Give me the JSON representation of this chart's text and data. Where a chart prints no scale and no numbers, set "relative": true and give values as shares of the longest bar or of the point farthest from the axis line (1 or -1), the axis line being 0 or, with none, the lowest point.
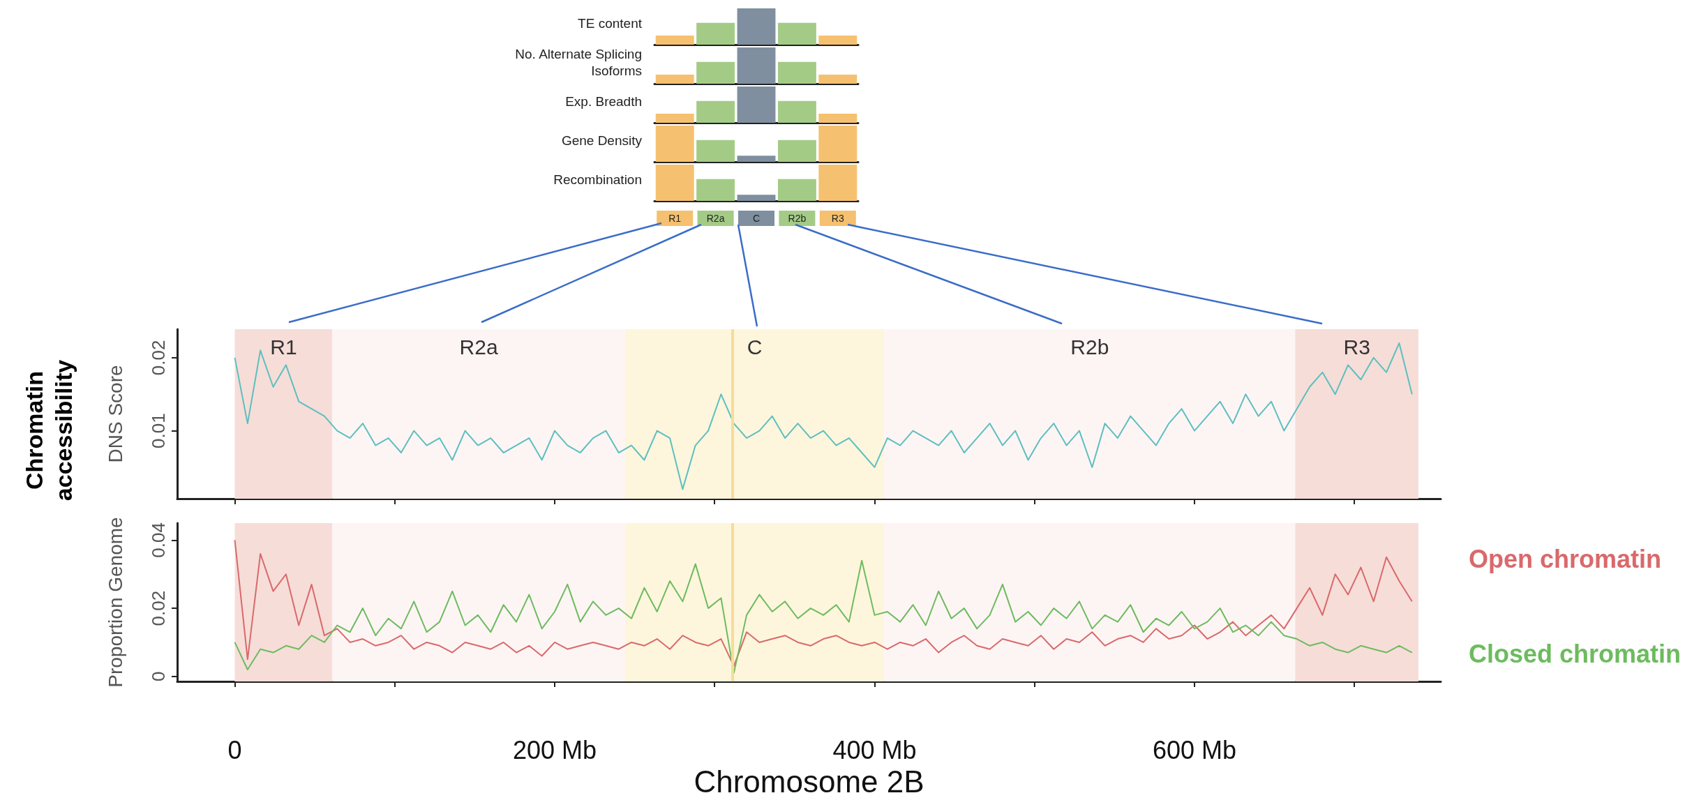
{
  "chart_data": [
    {
      "type": "bar",
      "relative": true,
      "ylabel": "TE content",
      "categories": [
        null,
        null,
        null,
        null,
        null
      ],
      "values": [
        0.25,
        0.6,
        1,
        0.6,
        0.25
      ],
      "colors": [
        "#f5c06f",
        "#a3cb86",
        "#7f8fa0",
        "#a3cb86",
        "#f5c06f"
      ],
      "tick_labels": false
    },
    {
      "type": "bar",
      "relative": true,
      "ylabel": "No. Alternate Splicing Isoforms",
      "categories": [
        null,
        null,
        null,
        null,
        null
      ],
      "values": [
        0.25,
        0.6,
        1,
        0.6,
        0.25
      ],
      "colors": [
        "#f5c06f",
        "#a3cb86",
        "#7f8fa0",
        "#a3cb86",
        "#f5c06f"
      ],
      "tick_labels": false
    },
    {
      "type": "bar",
      "relative": true,
      "ylabel": "Exp. Breadth",
      "categories": [
        null,
        null,
        null,
        null,
        null
      ],
      "values": [
        0.25,
        0.6,
        1,
        0.6,
        0.25
      ],
      "colors": [
        "#f5c06f",
        "#a3cb86",
        "#7f8fa0",
        "#a3cb86",
        "#f5c06f"
      ],
      "tick_labels": false
    },
    {
      "type": "bar",
      "relative": true,
      "ylabel": "Gene Density",
      "categories": [
        null,
        null,
        null,
        null,
        null
      ],
      "values": [
        1,
        0.6,
        0.17,
        0.6,
        1
      ],
      "colors": [
        "#f5c06f",
        "#a3cb86",
        "#7f8fa0",
        "#a3cb86",
        "#f5c06f"
      ],
      "tick_labels": false
    },
    {
      "type": "bar",
      "relative": true,
      "ylabel": "Recombination",
      "categories": [
        "R1",
        "R2a",
        "C",
        "R2b",
        "R3"
      ],
      "values": [
        1,
        0.6,
        0.17,
        0.6,
        1
      ],
      "colors": [
        "#f5c06f",
        "#a3cb86",
        "#7f8fa0",
        "#a3cb86",
        "#f5c06f"
      ],
      "tick_labels": "x"
    },
    {
      "type": "line",
      "ylabel": "DNS Score",
      "annotations": [
        "Chromatin accessibility"
      ],
      "x": [
        0,
        8,
        16,
        24,
        32,
        40,
        48,
        56,
        64,
        72,
        80,
        88,
        96,
        104,
        112,
        120,
        128,
        136,
        144,
        152,
        160,
        168,
        176,
        184,
        192,
        200,
        208,
        216,
        224,
        232,
        240,
        248,
        256,
        264,
        272,
        280,
        288,
        296,
        304,
        312,
        320,
        328,
        336,
        344,
        352,
        360,
        368,
        376,
        384,
        392,
        400,
        408,
        416,
        424,
        432,
        440,
        448,
        456,
        464,
        472,
        480,
        488,
        496,
        504,
        512,
        520,
        528,
        536,
        544,
        552,
        560,
        568,
        576,
        584,
        592,
        600,
        608,
        616,
        624,
        632,
        640,
        648,
        656,
        664,
        672,
        680,
        688,
        696,
        704,
        712,
        720,
        728,
        736
      ],
      "series": [
        {
          "color": "#5dbfbf",
          "values": [
            0.02,
            0.011,
            0.021,
            0.016,
            0.019,
            0.014,
            0.013,
            0.012,
            0.01,
            0.009,
            0.011,
            0.008,
            0.009,
            0.007,
            0.01,
            0.008,
            0.009,
            0.006,
            0.01,
            0.008,
            0.009,
            0.007,
            0.008,
            0.009,
            0.006,
            0.01,
            0.008,
            0.007,
            0.009,
            0.01,
            0.007,
            0.008,
            0.006,
            0.01,
            0.009,
            0.002,
            0.008,
            0.01,
            0.015,
            0.011,
            0.009,
            0.01,
            0.012,
            0.009,
            0.011,
            0.009,
            0.01,
            0.008,
            0.009,
            0.007,
            0.005,
            0.009,
            0.008,
            0.01,
            0.009,
            0.008,
            0.01,
            0.007,
            0.009,
            0.011,
            0.008,
            0.01,
            0.006,
            0.009,
            0.011,
            0.008,
            0.01,
            0.005,
            0.011,
            0.009,
            0.012,
            0.01,
            0.008,
            0.011,
            0.013,
            0.01,
            0.012,
            0.014,
            0.011,
            0.015,
            0.012,
            0.014,
            0.01,
            0.013,
            0.016,
            0.018,
            0.015,
            0.019,
            0.017,
            0.02,
            0.018,
            0.022,
            0.015
          ]
        }
      ],
      "xlim": [
        -36,
        754
      ],
      "xticks": [
        0,
        100,
        200,
        300,
        400,
        500,
        600,
        700
      ],
      "ylim": [
        0.0007,
        0.0239
      ],
      "yticks": [
        0.01,
        0.02
      ],
      "tick_labels": "y",
      "marker": "none",
      "line_style": "solid",
      "bands": [
        {
          "axis": "x",
          "from": 0,
          "to": 61,
          "label": "R1",
          "color": "#f6ddd8"
        },
        {
          "axis": "x",
          "from": 61,
          "to": 244,
          "label": "R2a",
          "color": "#fdf5f4"
        },
        {
          "axis": "x",
          "from": 244,
          "to": 406,
          "label": "C",
          "color": "#fdf6dc"
        },
        {
          "axis": "x",
          "from": 406,
          "to": 663,
          "label": "R2b",
          "color": "#fdf5f4"
        },
        {
          "axis": "x",
          "from": 663,
          "to": 740,
          "label": "R3",
          "color": "#f6ddd8"
        }
      ],
      "ref_lines": [
        {
          "axis": "x",
          "value": 311,
          "color": "#f7dc98"
        }
      ]
    },
    {
      "type": "line",
      "ylabel": "Proportion Genome",
      "xlabel": "Chromosome 2B",
      "x": [
        0,
        8,
        16,
        24,
        32,
        40,
        48,
        56,
        64,
        72,
        80,
        88,
        96,
        104,
        112,
        120,
        128,
        136,
        144,
        152,
        160,
        168,
        176,
        184,
        192,
        200,
        208,
        216,
        224,
        232,
        240,
        248,
        256,
        264,
        272,
        280,
        288,
        296,
        304,
        312,
        320,
        328,
        336,
        344,
        352,
        360,
        368,
        376,
        384,
        392,
        400,
        408,
        416,
        424,
        432,
        440,
        448,
        456,
        464,
        472,
        480,
        488,
        496,
        504,
        512,
        520,
        528,
        536,
        544,
        552,
        560,
        568,
        576,
        584,
        592,
        600,
        608,
        616,
        624,
        632,
        640,
        648,
        656,
        664,
        672,
        680,
        688,
        696,
        704,
        712,
        720,
        728,
        736
      ],
      "series": [
        {
          "name": "Open chromatin",
          "color": "#d9696b",
          "values": [
            0.04,
            0.005,
            0.036,
            0.025,
            0.03,
            0.015,
            0.027,
            0.012,
            0.014,
            0.01,
            0.011,
            0.009,
            0.01,
            0.012,
            0.008,
            0.01,
            0.009,
            0.007,
            0.01,
            0.009,
            0.008,
            0.01,
            0.007,
            0.009,
            0.006,
            0.01,
            0.008,
            0.009,
            0.01,
            0.009,
            0.008,
            0.01,
            0.009,
            0.011,
            0.008,
            0.012,
            0.01,
            0.009,
            0.011,
            0.003,
            0.013,
            0.01,
            0.011,
            0.012,
            0.01,
            0.009,
            0.011,
            0.012,
            0.01,
            0.009,
            0.01,
            0.008,
            0.01,
            0.009,
            0.011,
            0.007,
            0.01,
            0.012,
            0.009,
            0.008,
            0.011,
            0.01,
            0.009,
            0.012,
            0.008,
            0.011,
            0.01,
            0.013,
            0.009,
            0.011,
            0.012,
            0.01,
            0.014,
            0.011,
            0.012,
            0.015,
            0.011,
            0.013,
            0.016,
            0.012,
            0.015,
            0.018,
            0.014,
            0.02,
            0.026,
            0.018,
            0.03,
            0.024,
            0.032,
            0.022,
            0.035,
            0.028,
            0.022
          ]
        },
        {
          "name": "Closed chromatin",
          "color": "#6dbb5f",
          "values": [
            0.01,
            0.002,
            0.008,
            0.007,
            0.009,
            0.008,
            0.012,
            0.01,
            0.015,
            0.013,
            0.02,
            0.012,
            0.017,
            0.014,
            0.022,
            0.013,
            0.016,
            0.025,
            0.015,
            0.018,
            0.013,
            0.021,
            0.016,
            0.024,
            0.014,
            0.019,
            0.027,
            0.016,
            0.022,
            0.018,
            0.02,
            0.017,
            0.026,
            0.019,
            0.028,
            0.022,
            0.033,
            0.02,
            0.023,
            0.001,
            0.018,
            0.024,
            0.019,
            0.022,
            0.017,
            0.02,
            0.018,
            0.021,
            0.016,
            0.034,
            0.018,
            0.019,
            0.016,
            0.021,
            0.015,
            0.025,
            0.017,
            0.02,
            0.014,
            0.018,
            0.027,
            0.016,
            0.019,
            0.015,
            0.02,
            0.017,
            0.022,
            0.014,
            0.018,
            0.016,
            0.021,
            0.013,
            0.017,
            0.015,
            0.019,
            0.014,
            0.016,
            0.02,
            0.013,
            0.015,
            0.012,
            0.016,
            0.012,
            0.011,
            0.009,
            0.01,
            0.008,
            0.007,
            0.009,
            0.008,
            0.007,
            0.009,
            0.007
          ]
        }
      ],
      "xlim": [
        -36,
        754
      ],
      "xticks": [
        {
          "value": 0,
          "label": "0"
        },
        {
          "value": 100,
          "label": null
        },
        {
          "value": 200,
          "label": "200 Mb"
        },
        {
          "value": 300,
          "label": null
        },
        {
          "value": 400,
          "label": "400 Mb"
        },
        {
          "value": 500,
          "label": null
        },
        {
          "value": 600,
          "label": "600 Mb"
        },
        {
          "value": 700,
          "label": null
        }
      ],
      "ylim": [
        -0.0015,
        0.045
      ],
      "yticks": [
        0,
        0.02,
        0.04
      ],
      "marker": "none",
      "line_style": "solid",
      "legend": "right",
      "bands": [
        {
          "axis": "x",
          "from": 0,
          "to": 61,
          "color": "#f6ddd8"
        },
        {
          "axis": "x",
          "from": 61,
          "to": 244,
          "color": "#fdf5f4"
        },
        {
          "axis": "x",
          "from": 244,
          "to": 406,
          "color": "#fdf6dc"
        },
        {
          "axis": "x",
          "from": 406,
          "to": 663,
          "color": "#fdf5f4"
        },
        {
          "axis": "x",
          "from": 663,
          "to": 740,
          "color": "#f6ddd8"
        }
      ],
      "ref_lines": [
        {
          "axis": "x",
          "value": 311,
          "color": "#f7dc98"
        }
      ]
    }
  ]
}
